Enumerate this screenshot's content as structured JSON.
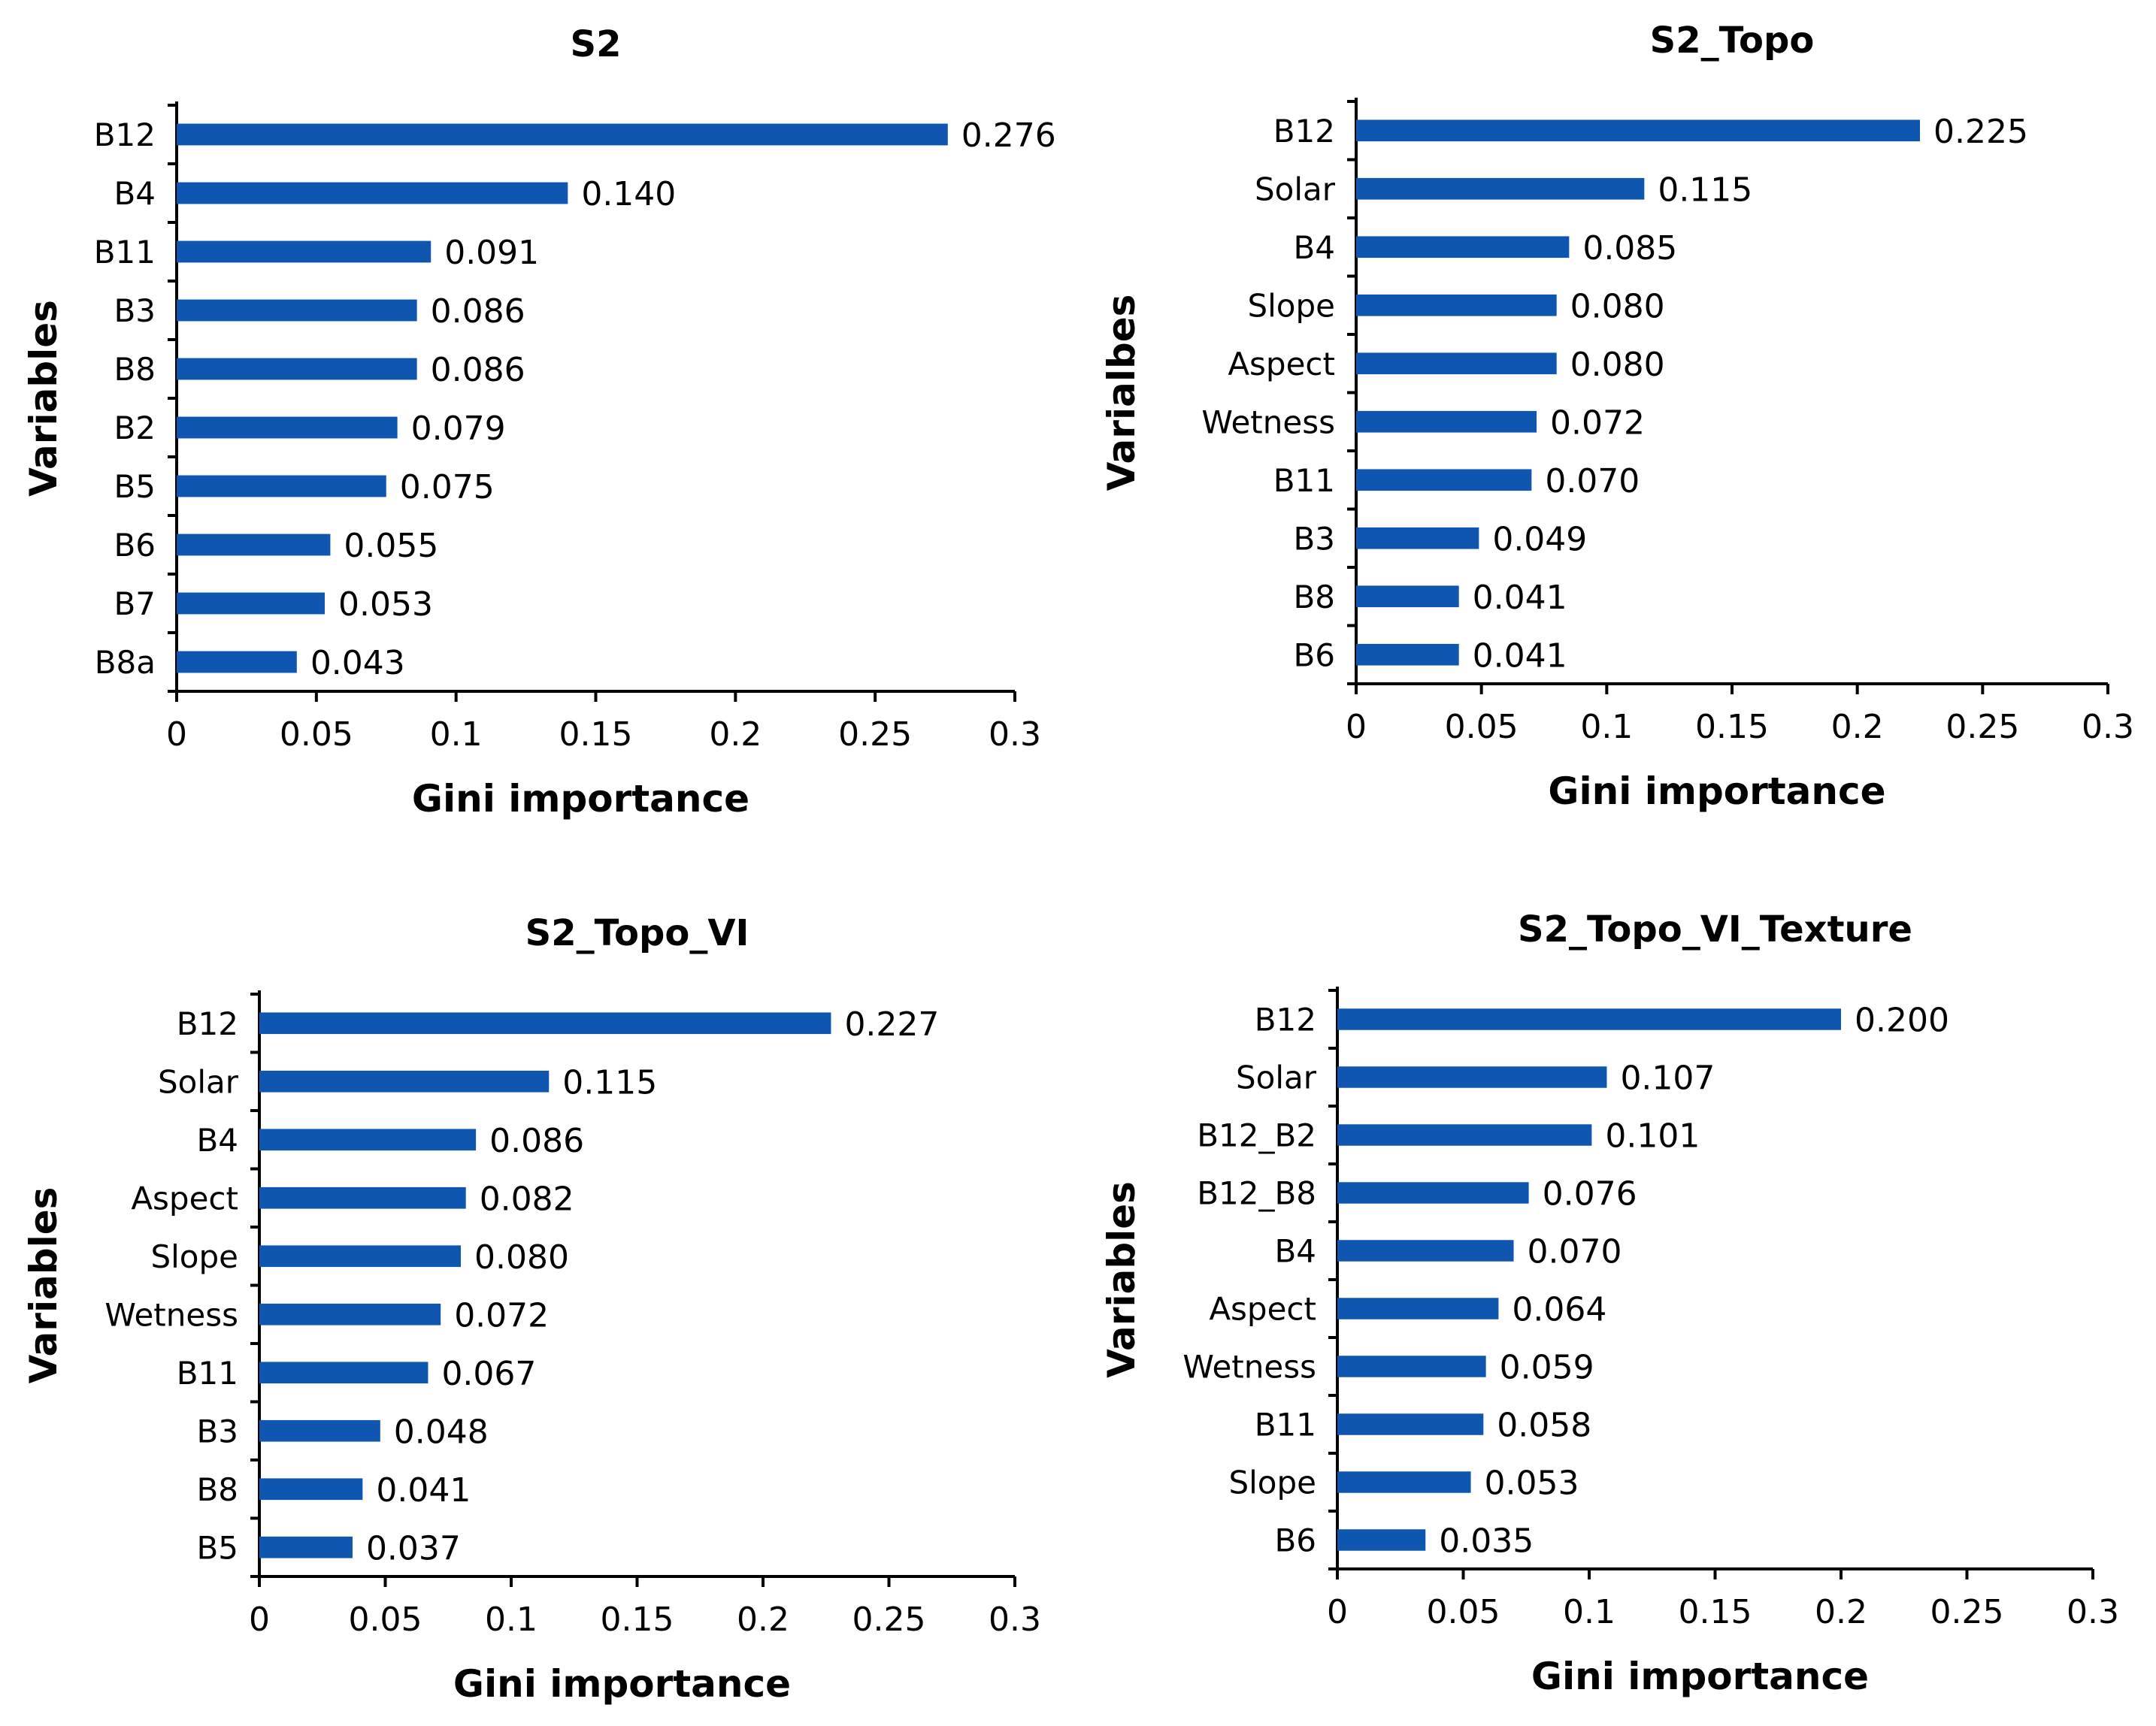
{
  "chart_data": [
    {
      "type": "bar",
      "orientation": "horizontal",
      "title": "S2",
      "xlabel": "Gini importance",
      "ylabel": "Variables",
      "xlim": [
        0,
        0.3
      ],
      "xticks": [
        "0",
        "0.05",
        "0.1",
        "0.15",
        "0.2",
        "0.25",
        "0.3"
      ],
      "categories": [
        "B12",
        "B4",
        "B11",
        "B3",
        "B8",
        "B2",
        "B5",
        "B6",
        "B7",
        "B8a"
      ],
      "values": [
        0.276,
        0.14,
        0.091,
        0.086,
        0.086,
        0.079,
        0.075,
        0.055,
        0.053,
        0.043
      ],
      "labels": [
        "0.276",
        "0.140",
        "0.091",
        "0.086",
        "0.086",
        "0.079",
        "0.075",
        "0.055",
        "0.053",
        "0.043"
      ],
      "color": "#0e56b0"
    },
    {
      "type": "bar",
      "orientation": "horizontal",
      "title": "S2_Topo",
      "xlabel": "Gini importance",
      "ylabel": "Varialbes",
      "xlim": [
        0,
        0.3
      ],
      "xticks": [
        "0",
        "0.05",
        "0.1",
        "0.15",
        "0.2",
        "0.25",
        "0.3"
      ],
      "categories": [
        "B12",
        "Solar",
        "B4",
        "Slope",
        "Aspect",
        "Wetness",
        "B11",
        "B3",
        "B8",
        "B6"
      ],
      "values": [
        0.225,
        0.115,
        0.085,
        0.08,
        0.08,
        0.072,
        0.07,
        0.049,
        0.041,
        0.041
      ],
      "labels": [
        "0.225",
        "0.115",
        "0.085",
        "0.080",
        "0.080",
        "0.072",
        "0.070",
        "0.049",
        "0.041",
        "0.041"
      ],
      "color": "#0e56b0"
    },
    {
      "type": "bar",
      "orientation": "horizontal",
      "title": "S2_Topo_VI",
      "xlabel": "Gini importance",
      "ylabel": "Variables",
      "xlim": [
        0,
        0.3
      ],
      "xticks": [
        "0",
        "0.05",
        "0.1",
        "0.15",
        "0.2",
        "0.25",
        "0.3"
      ],
      "categories": [
        "B12",
        "Solar",
        "B4",
        "Aspect",
        "Slope",
        "Wetness",
        "B11",
        "B3",
        "B8",
        "B5"
      ],
      "values": [
        0.227,
        0.115,
        0.086,
        0.082,
        0.08,
        0.072,
        0.067,
        0.048,
        0.041,
        0.037
      ],
      "labels": [
        "0.227",
        "0.115",
        "0.086",
        "0.082",
        "0.080",
        "0.072",
        "0.067",
        "0.048",
        "0.041",
        "0.037"
      ],
      "color": "#0e56b0"
    },
    {
      "type": "bar",
      "orientation": "horizontal",
      "title": "S2_Topo_VI_Texture",
      "xlabel": "Gini importance",
      "ylabel": "Variables",
      "xlim": [
        0,
        0.3
      ],
      "xticks": [
        "0",
        "0.05",
        "0.1",
        "0.15",
        "0.2",
        "0.25",
        "0.3"
      ],
      "categories": [
        "B12",
        "Solar",
        "B12_B2",
        "B12_B8",
        "B4",
        "Aspect",
        "Wetness",
        "B11",
        "Slope",
        "B6"
      ],
      "values": [
        0.2,
        0.107,
        0.101,
        0.076,
        0.07,
        0.064,
        0.059,
        0.058,
        0.053,
        0.035
      ],
      "labels": [
        "0.200",
        "0.107",
        "0.101",
        "0.076",
        "0.070",
        "0.064",
        "0.059",
        "0.058",
        "0.053",
        "0.035"
      ],
      "color": "#0e56b0"
    }
  ]
}
